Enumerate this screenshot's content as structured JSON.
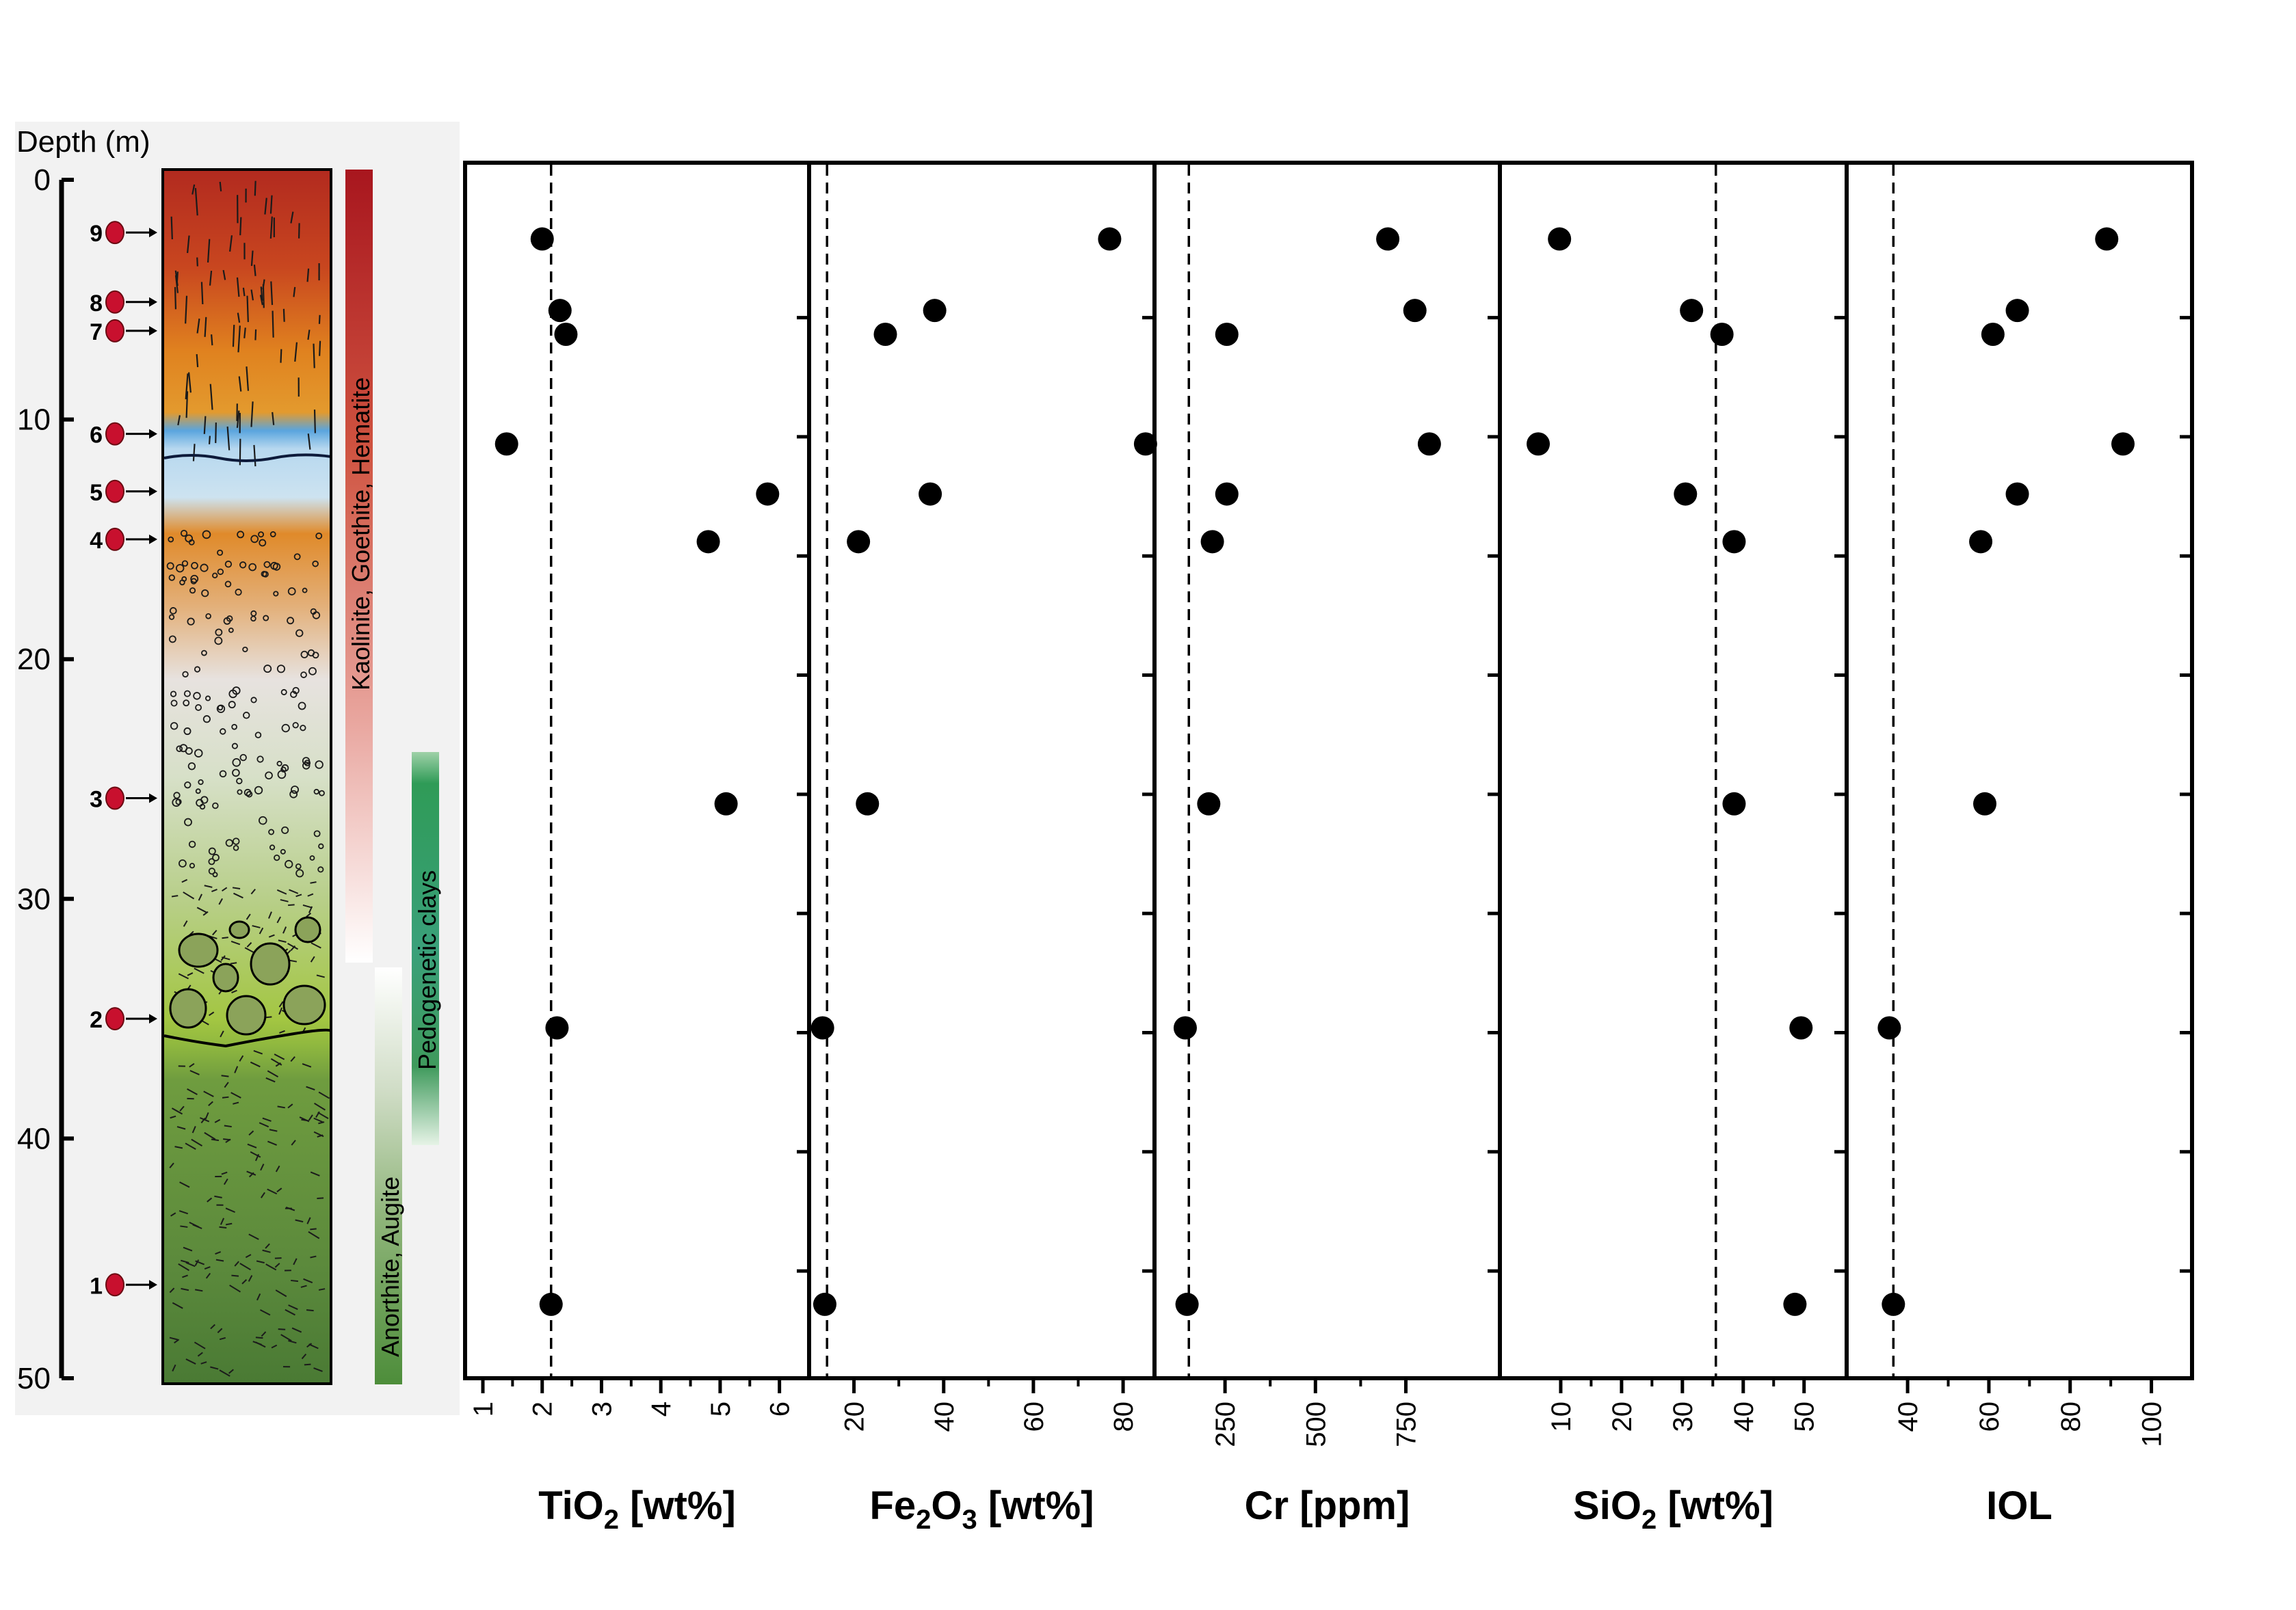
{
  "chart_data": {
    "type": "scatter",
    "depth_axis": {
      "label": "Depth (m)",
      "range": [
        0,
        50
      ],
      "ticks": [
        0,
        10,
        20,
        30,
        40,
        50
      ]
    },
    "samples": {
      "labels": [
        "1",
        "2",
        "3",
        "4",
        "5",
        "6",
        "7",
        "8",
        "9"
      ],
      "depths": [
        46.1,
        35.0,
        25.8,
        15.0,
        13.0,
        10.6,
        6.3,
        5.1,
        2.2
      ]
    },
    "minerals": [
      {
        "name": "Kaolinite, Goethite, Hematite",
        "depth_range": [
          0,
          33
        ],
        "color": "#a8161e"
      },
      {
        "name": "Pedogenetic clays",
        "depth_range": [
          24,
          40
        ],
        "color": "#2f9b57"
      },
      {
        "name": "Anorthite, Augite",
        "depth_range": [
          33,
          50
        ],
        "color": "#4d8d3a"
      }
    ],
    "panels": [
      {
        "title": "TiO",
        "sub": "2",
        "unit": " [wt%]",
        "xlim": [
          0.7,
          6.5
        ],
        "xticks": [
          1,
          2,
          3,
          4,
          5,
          6
        ],
        "reference": 2.15,
        "points": [
          [
            2.0,
            1.7
          ],
          [
            2.3,
            4.7
          ],
          [
            2.4,
            5.7
          ],
          [
            1.4,
            10.3
          ],
          [
            5.8,
            12.4
          ],
          [
            4.8,
            14.4
          ],
          [
            5.1,
            25.4
          ],
          [
            2.25,
            34.8
          ],
          [
            2.15,
            46.4
          ]
        ]
      },
      {
        "title": "Fe",
        "sub": "2",
        "title2": "O",
        "sub2": "3",
        "unit": " [wt%]",
        "xlim": [
          10,
          87
        ],
        "xticks": [
          20,
          40,
          60,
          80
        ],
        "reference": 14,
        "points": [
          [
            77,
            1.7
          ],
          [
            38,
            4.7
          ],
          [
            27,
            5.7
          ],
          [
            85,
            10.3
          ],
          [
            37,
            12.4
          ],
          [
            21,
            14.4
          ],
          [
            23,
            25.4
          ],
          [
            13,
            34.8
          ],
          [
            13.5,
            46.4
          ]
        ]
      },
      {
        "title": "Cr",
        "unit": " [ppm]",
        "xlim": [
          55,
          1010
        ],
        "xticks": [
          250,
          500,
          750
        ],
        "reference": 150,
        "points": [
          [
            700,
            1.7
          ],
          [
            775,
            4.7
          ],
          [
            255,
            5.7
          ],
          [
            815,
            10.3
          ],
          [
            255,
            12.4
          ],
          [
            215,
            14.4
          ],
          [
            205,
            25.4
          ],
          [
            140,
            34.8
          ],
          [
            145,
            46.4
          ]
        ]
      },
      {
        "title": "SiO",
        "sub": "2",
        "unit": " [wt%]",
        "xlim": [
          0,
          57
        ],
        "xticks": [
          10,
          20,
          30,
          40,
          50
        ],
        "reference": 35.5,
        "points": [
          [
            9.8,
            1.7
          ],
          [
            31.5,
            4.7
          ],
          [
            36.5,
            5.7
          ],
          [
            6.3,
            10.3
          ],
          [
            30.5,
            12.4
          ],
          [
            38.5,
            14.4
          ],
          [
            38.5,
            25.4
          ],
          [
            49.5,
            34.8
          ],
          [
            48.5,
            46.4
          ]
        ]
      },
      {
        "title": "IOL",
        "unit": "",
        "xlim": [
          25,
          110
        ],
        "xticks": [
          40,
          60,
          80,
          100
        ],
        "reference": 36.5,
        "points": [
          [
            89,
            1.7
          ],
          [
            67,
            4.7
          ],
          [
            61,
            5.7
          ],
          [
            93,
            10.3
          ],
          [
            67,
            12.4
          ],
          [
            58,
            14.4
          ],
          [
            59,
            25.4
          ],
          [
            35.5,
            34.8
          ],
          [
            36.5,
            46.4
          ]
        ]
      }
    ]
  }
}
